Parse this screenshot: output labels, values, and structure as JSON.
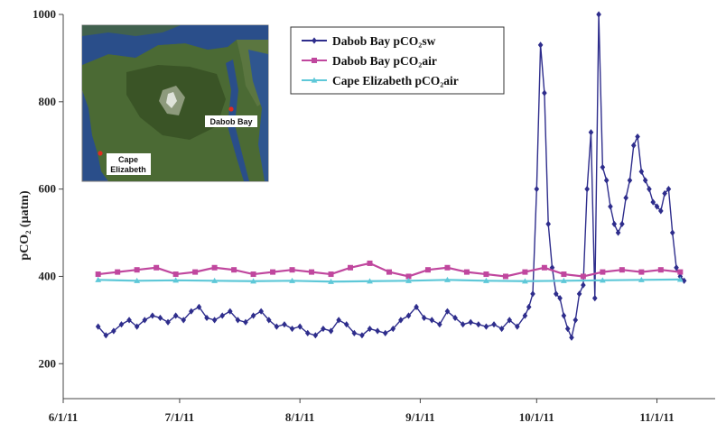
{
  "chart_data": {
    "type": "line",
    "ylabel": "pCO₂ (µatm)",
    "xlabel": "",
    "ylim": [
      120,
      1000
    ],
    "xlim": [
      "2011-06-01",
      "2011-11-16"
    ],
    "yticks": [
      "200",
      "400",
      "600",
      "800",
      "1000"
    ],
    "xticks": [
      {
        "label": "6/1/11",
        "date": "2011-06-01"
      },
      {
        "label": "7/1/11",
        "date": "2011-07-01"
      },
      {
        "label": "8/1/11",
        "date": "2011-08-01"
      },
      {
        "label": "9/1/11",
        "date": "2011-09-01"
      },
      {
        "label": "10/1/11",
        "date": "2011-10-01"
      },
      {
        "label": "11/1/11",
        "date": "2011-11-01"
      }
    ],
    "grid": false,
    "legend_position": "top-right",
    "series": [
      {
        "name": "Dabob Bay pCO₂sw",
        "color": "#2e2d8c",
        "marker": "diamond",
        "x": [
          "2011-06-10",
          "2011-06-12",
          "2011-06-14",
          "2011-06-16",
          "2011-06-18",
          "2011-06-20",
          "2011-06-22",
          "2011-06-24",
          "2011-06-26",
          "2011-06-28",
          "2011-06-30",
          "2011-07-02",
          "2011-07-04",
          "2011-07-06",
          "2011-07-08",
          "2011-07-10",
          "2011-07-12",
          "2011-07-14",
          "2011-07-16",
          "2011-07-18",
          "2011-07-20",
          "2011-07-22",
          "2011-07-24",
          "2011-07-26",
          "2011-07-28",
          "2011-07-30",
          "2011-08-01",
          "2011-08-03",
          "2011-08-05",
          "2011-08-07",
          "2011-08-09",
          "2011-08-11",
          "2011-08-13",
          "2011-08-15",
          "2011-08-17",
          "2011-08-19",
          "2011-08-21",
          "2011-08-23",
          "2011-08-25",
          "2011-08-27",
          "2011-08-29",
          "2011-08-31",
          "2011-09-02",
          "2011-09-04",
          "2011-09-06",
          "2011-09-08",
          "2011-09-10",
          "2011-09-12",
          "2011-09-14",
          "2011-09-16",
          "2011-09-18",
          "2011-09-20",
          "2011-09-22",
          "2011-09-24",
          "2011-09-26",
          "2011-09-28",
          "2011-09-29",
          "2011-09-30",
          "2011-10-01",
          "2011-10-02",
          "2011-10-03",
          "2011-10-04",
          "2011-10-05",
          "2011-10-06",
          "2011-10-07",
          "2011-10-08",
          "2011-10-09",
          "2011-10-10",
          "2011-10-11",
          "2011-10-12",
          "2011-10-13",
          "2011-10-14",
          "2011-10-15",
          "2011-10-16",
          "2011-10-17",
          "2011-10-18",
          "2011-10-19",
          "2011-10-20",
          "2011-10-21",
          "2011-10-22",
          "2011-10-23",
          "2011-10-24",
          "2011-10-25",
          "2011-10-26",
          "2011-10-27",
          "2011-10-28",
          "2011-10-29",
          "2011-10-30",
          "2011-10-31",
          "2011-11-01",
          "2011-11-02",
          "2011-11-03",
          "2011-11-04",
          "2011-11-05",
          "2011-11-06",
          "2011-11-07",
          "2011-11-08"
        ],
        "values": [
          285,
          265,
          275,
          290,
          300,
          285,
          300,
          310,
          305,
          295,
          310,
          300,
          320,
          330,
          305,
          300,
          310,
          320,
          300,
          295,
          310,
          320,
          300,
          285,
          290,
          280,
          285,
          270,
          265,
          280,
          275,
          300,
          290,
          270,
          265,
          280,
          275,
          270,
          280,
          300,
          310,
          330,
          305,
          300,
          290,
          320,
          305,
          290,
          295,
          290,
          285,
          290,
          280,
          300,
          285,
          310,
          330,
          360,
          600,
          930,
          820,
          520,
          420,
          360,
          350,
          310,
          280,
          260,
          300,
          360,
          380,
          600,
          730,
          350,
          1000,
          650,
          620,
          560,
          520,
          500,
          520,
          580,
          620,
          700,
          720,
          640,
          620,
          600,
          570,
          560,
          550,
          590,
          600,
          500,
          420,
          400,
          390
        ]
      },
      {
        "name": "Dabob Bay pCO₂air",
        "color": "#c0479e",
        "marker": "square",
        "x": [
          "2011-06-10",
          "2011-06-15",
          "2011-06-20",
          "2011-06-25",
          "2011-06-30",
          "2011-07-05",
          "2011-07-10",
          "2011-07-15",
          "2011-07-20",
          "2011-07-25",
          "2011-07-30",
          "2011-08-04",
          "2011-08-09",
          "2011-08-14",
          "2011-08-19",
          "2011-08-24",
          "2011-08-29",
          "2011-09-03",
          "2011-09-08",
          "2011-09-13",
          "2011-09-18",
          "2011-09-23",
          "2011-09-28",
          "2011-10-03",
          "2011-10-08",
          "2011-10-13",
          "2011-10-18",
          "2011-10-23",
          "2011-10-28",
          "2011-11-02",
          "2011-11-07"
        ],
        "values": [
          405,
          410,
          415,
          420,
          405,
          410,
          420,
          415,
          405,
          410,
          415,
          410,
          405,
          420,
          430,
          410,
          400,
          415,
          420,
          410,
          405,
          400,
          410,
          420,
          405,
          400,
          410,
          415,
          410,
          415,
          410
        ]
      },
      {
        "name": "Cape Elizabeth pCO₂air",
        "color": "#5ec8d8",
        "marker": "triangle",
        "x": [
          "2011-06-10",
          "2011-06-20",
          "2011-06-30",
          "2011-07-10",
          "2011-07-20",
          "2011-07-30",
          "2011-08-09",
          "2011-08-19",
          "2011-08-29",
          "2011-09-08",
          "2011-09-18",
          "2011-09-28",
          "2011-10-08",
          "2011-10-18",
          "2011-10-28",
          "2011-11-07"
        ],
        "values": [
          392,
          390,
          391,
          390,
          389,
          390,
          388,
          389,
          390,
          392,
          390,
          389,
          390,
          391,
          392,
          393
        ]
      }
    ]
  },
  "inset_map": {
    "labels": [
      "Dabob Bay",
      "Cape Elizabeth"
    ],
    "land_color": "#3d5a2b",
    "water_color": "#2a4e8a"
  }
}
